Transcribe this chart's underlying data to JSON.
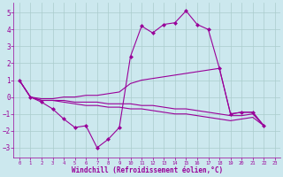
{
  "bg_color": "#cce8ee",
  "line_color": "#990099",
  "grid_color": "#aacccc",
  "xlabel": "Windchill (Refroidissement éolien,°C)",
  "xlim": [
    -0.5,
    23.5
  ],
  "ylim": [
    -3.6,
    5.6
  ],
  "yticks": [
    -3,
    -2,
    -1,
    0,
    1,
    2,
    3,
    4,
    5
  ],
  "xticks": [
    0,
    1,
    2,
    3,
    4,
    5,
    6,
    7,
    8,
    9,
    10,
    11,
    12,
    13,
    14,
    15,
    16,
    17,
    18,
    19,
    20,
    21,
    22,
    23
  ],
  "series1_x": [
    0,
    1,
    2,
    3,
    4,
    5,
    6,
    7,
    8,
    9,
    10,
    11,
    12,
    13,
    14,
    15,
    16,
    17,
    18,
    19,
    20,
    21,
    22
  ],
  "series1_y": [
    1.0,
    0.0,
    -0.3,
    -0.7,
    -1.3,
    -1.8,
    -1.7,
    -3.0,
    -2.5,
    -1.8,
    2.4,
    4.2,
    3.8,
    4.3,
    4.4,
    5.1,
    4.3,
    4.0,
    1.7,
    -1.0,
    -0.9,
    -0.9,
    -1.7
  ],
  "series2_x": [
    0,
    1,
    2,
    3,
    4,
    5,
    6,
    7,
    8,
    9,
    10,
    11,
    12,
    13,
    14,
    15,
    16,
    17,
    18,
    19,
    20,
    21,
    22
  ],
  "series2_y": [
    1.0,
    0.0,
    -0.1,
    -0.1,
    -0.0,
    0.0,
    0.1,
    0.1,
    0.2,
    0.3,
    0.8,
    1.0,
    1.1,
    1.2,
    1.3,
    1.4,
    1.5,
    1.6,
    1.7,
    -1.0,
    -0.9,
    -0.9,
    -1.7
  ],
  "series3_x": [
    0,
    1,
    2,
    3,
    4,
    5,
    6,
    7,
    8,
    9,
    10,
    11,
    12,
    13,
    14,
    15,
    16,
    17,
    18,
    19,
    20,
    21,
    22
  ],
  "series3_y": [
    1.0,
    0.0,
    -0.2,
    -0.2,
    -0.2,
    -0.3,
    -0.3,
    -0.3,
    -0.4,
    -0.4,
    -0.4,
    -0.5,
    -0.5,
    -0.6,
    -0.7,
    -0.7,
    -0.8,
    -0.9,
    -1.0,
    -1.1,
    -1.1,
    -1.0,
    -1.7
  ],
  "series4_x": [
    0,
    1,
    2,
    3,
    4,
    5,
    6,
    7,
    8,
    9,
    10,
    11,
    12,
    13,
    14,
    15,
    16,
    17,
    18,
    19,
    20,
    21,
    22
  ],
  "series4_y": [
    1.0,
    0.0,
    -0.2,
    -0.2,
    -0.3,
    -0.4,
    -0.5,
    -0.5,
    -0.6,
    -0.6,
    -0.7,
    -0.7,
    -0.8,
    -0.9,
    -1.0,
    -1.0,
    -1.1,
    -1.2,
    -1.3,
    -1.4,
    -1.3,
    -1.2,
    -1.7
  ]
}
